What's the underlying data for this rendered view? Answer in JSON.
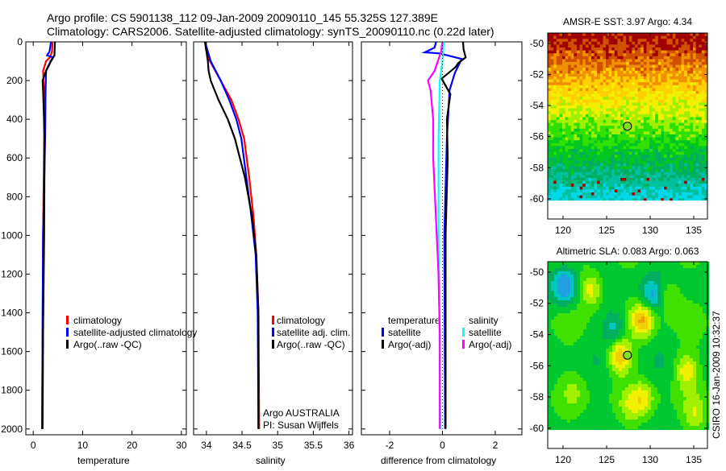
{
  "header": {
    "line1": "Argo profile: CS 5901138_112 09-Jan-2009 20090110_145 55.325S 127.389E",
    "line2": "Climatology: CARS2006. Satellite-adjusted climatology: synTS_20090110.nc (0.22d later)"
  },
  "timestamp": "CSIRO 16-Jan-2009 10:32:37",
  "colors": {
    "climatology": "#ff0000",
    "satellite": "#0000ff",
    "argo": "#000000",
    "sal_satellite": "#00ffff",
    "sal_argo": "#ff00ff"
  },
  "chart_data": [
    {
      "type": "line",
      "id": "temperature",
      "xlabel": "temperature",
      "ylabel": "",
      "xlim": [
        -1.5,
        31
      ],
      "ylim": [
        2030,
        0
      ],
      "xticks": [
        "0",
        "10",
        "20",
        "30"
      ],
      "xtick_values": [
        0,
        10,
        20,
        30
      ],
      "yticks": [
        "0",
        "200",
        "400",
        "600",
        "800",
        "1000",
        "1200",
        "1400",
        "1600",
        "1800",
        "2000"
      ],
      "ytick_values": [
        0,
        200,
        400,
        600,
        800,
        1000,
        1200,
        1400,
        1600,
        1800,
        2000
      ],
      "legend": [
        "climatology",
        "satellite-adjusted climatology",
        "Argo(..raw -QC)"
      ],
      "legend_placement": "bottom-center",
      "series": [
        {
          "name": "climatology",
          "color": "#ff0000",
          "depth": [
            0,
            50,
            80,
            100,
            150,
            250,
            500,
            1000,
            1500,
            2000
          ],
          "values": [
            3.9,
            3.8,
            3.4,
            2.6,
            2.0,
            2.2,
            2.2,
            2.0,
            1.9,
            1.8
          ]
        },
        {
          "name": "satellite-adjusted climatology",
          "color": "#0000ff",
          "depth": [
            0,
            50,
            70,
            80,
            100,
            150,
            250,
            500,
            1000,
            2000
          ],
          "values": [
            3.6,
            3.3,
            2.8,
            4.0,
            3.5,
            2.6,
            2.5,
            2.4,
            2.0,
            1.8
          ]
        },
        {
          "name": "Argo(..raw -QC)",
          "color": "#000000",
          "depth": [
            0,
            70,
            100,
            150,
            200,
            250,
            500,
            1000,
            1500,
            2000
          ],
          "values": [
            4.4,
            4.3,
            3.6,
            2.6,
            1.9,
            2.0,
            2.3,
            2.2,
            2.0,
            1.9
          ]
        }
      ]
    },
    {
      "type": "line",
      "id": "salinity",
      "xlabel": "salinity",
      "xlim": [
        33.82,
        36.05
      ],
      "ylim": [
        2030,
        0
      ],
      "xticks": [
        "34",
        "34.5",
        "35",
        "35.5",
        "36"
      ],
      "xtick_values": [
        34,
        34.5,
        35,
        35.5,
        36
      ],
      "legend": [
        "climatology",
        "satellite adj. clim.",
        "Argo(..raw -QC)"
      ],
      "legend_placement": "bottom-right",
      "annotations": [
        "Argo AUSTRALIA",
        "PI: Susan Wijffels"
      ],
      "series": [
        {
          "name": "climatology",
          "color": "#ff0000",
          "depth": [
            0,
            50,
            100,
            200,
            300,
            400,
            500,
            700,
            900,
            1100,
            1400,
            2000
          ],
          "values": [
            33.98,
            34.0,
            34.05,
            34.2,
            34.35,
            34.45,
            34.53,
            34.6,
            34.66,
            34.7,
            34.73,
            34.74
          ]
        },
        {
          "name": "satellite adj. clim.",
          "color": "#0000ff",
          "depth": [
            0,
            100,
            200,
            300,
            400,
            500,
            700,
            900,
            1100,
            1400,
            2000
          ],
          "values": [
            33.98,
            34.06,
            34.2,
            34.32,
            34.42,
            34.49,
            34.56,
            34.63,
            34.69,
            34.72,
            34.73
          ]
        },
        {
          "name": "Argo(..raw -QC)",
          "color": "#000000",
          "depth": [
            0,
            100,
            150,
            200,
            300,
            400,
            500,
            700,
            900,
            1100,
            1400,
            2000
          ],
          "values": [
            33.98,
            34.02,
            34.03,
            34.06,
            34.17,
            34.3,
            34.4,
            34.54,
            34.64,
            34.7,
            34.73,
            34.73
          ]
        }
      ]
    },
    {
      "type": "line",
      "id": "difference",
      "xlabel": "difference from climatology",
      "xlim": [
        -3.07,
        3.01
      ],
      "ylim": [
        2030,
        0
      ],
      "xticks": [
        "-2",
        "0",
        "2"
      ],
      "xtick_values": [
        -2,
        0,
        2
      ],
      "legend_headers": [
        "temperature",
        "salinity"
      ],
      "legend": [
        "satellite",
        "Argo(-adj)",
        "satellite",
        "Argo(-adj)"
      ],
      "legend_placement": "bottom-center",
      "series": [
        {
          "name": "temperature satellite",
          "color": "#0000ff",
          "depth": [
            0,
            30,
            54,
            60,
            88,
            160,
            250,
            500,
            1000,
            2000
          ],
          "values": [
            -0.24,
            -0.3,
            -0.67,
            -0.1,
            0.73,
            0.47,
            0.27,
            0.17,
            0.07,
            0.1
          ]
        },
        {
          "name": "temperature Argo(-adj)",
          "color": "#000000",
          "depth": [
            0,
            40,
            80,
            110,
            130,
            190,
            270,
            400,
            600,
            1000,
            2000
          ],
          "values": [
            0.78,
            0.8,
            0.88,
            0.6,
            0.5,
            -0.03,
            0.3,
            0.17,
            0.2,
            0.12,
            0.12
          ]
        },
        {
          "name": "salinity satellite",
          "color": "#00ffff",
          "depth": [
            0,
            100,
            200,
            500,
            1000,
            2000
          ],
          "values": [
            0.05,
            0.0,
            -0.1,
            -0.15,
            -0.15,
            -0.08
          ]
        },
        {
          "name": "salinity Argo(-adj)",
          "color": "#ff00ff",
          "depth": [
            0,
            50,
            150,
            200,
            250,
            400,
            600,
            900,
            1200,
            1500,
            2000
          ],
          "values": [
            0.0,
            -0.05,
            -0.3,
            -0.55,
            -0.45,
            -0.35,
            -0.35,
            -0.25,
            -0.15,
            -0.1,
            -0.1
          ]
        },
        {
          "name": "zero",
          "color": "#000000",
          "dotted": true,
          "depth": [
            0,
            2000
          ],
          "values": [
            0,
            0
          ]
        }
      ]
    },
    {
      "type": "heatmap",
      "id": "sst",
      "title": "AMSR-E SST: 3.97 Argo: 4.34",
      "xlim": [
        118.24,
        136.57
      ],
      "ylim": [
        -61.3,
        -49.33
      ],
      "data_south_limit": -60.1,
      "xticks": [
        "120",
        "125",
        "130",
        "135"
      ],
      "xtick_values": [
        120,
        125,
        130,
        135
      ],
      "yticks": [
        "-50",
        "-52",
        "-54",
        "-56",
        "-58",
        "-60"
      ],
      "ytick_values": [
        -50,
        -52,
        -54,
        -56,
        -58,
        -60
      ],
      "marker": {
        "lon": 127.389,
        "lat": -55.325
      }
    },
    {
      "type": "heatmap",
      "id": "sla",
      "title": "Altimetric SLA: 0.083 Argo: 0.063",
      "xlim": [
        118.24,
        136.57
      ],
      "ylim": [
        -61.3,
        -49.33
      ],
      "data_south_limit": -60.1,
      "xticks": [
        "120",
        "125",
        "130",
        "135"
      ],
      "xtick_values": [
        120,
        125,
        130,
        135
      ],
      "yticks": [
        "-50",
        "-52",
        "-54",
        "-56",
        "-58",
        "-60"
      ],
      "ytick_values": [
        -50,
        -52,
        -54,
        -56,
        -58,
        -60
      ],
      "marker": {
        "lon": 127.389,
        "lat": -55.325
      }
    }
  ]
}
